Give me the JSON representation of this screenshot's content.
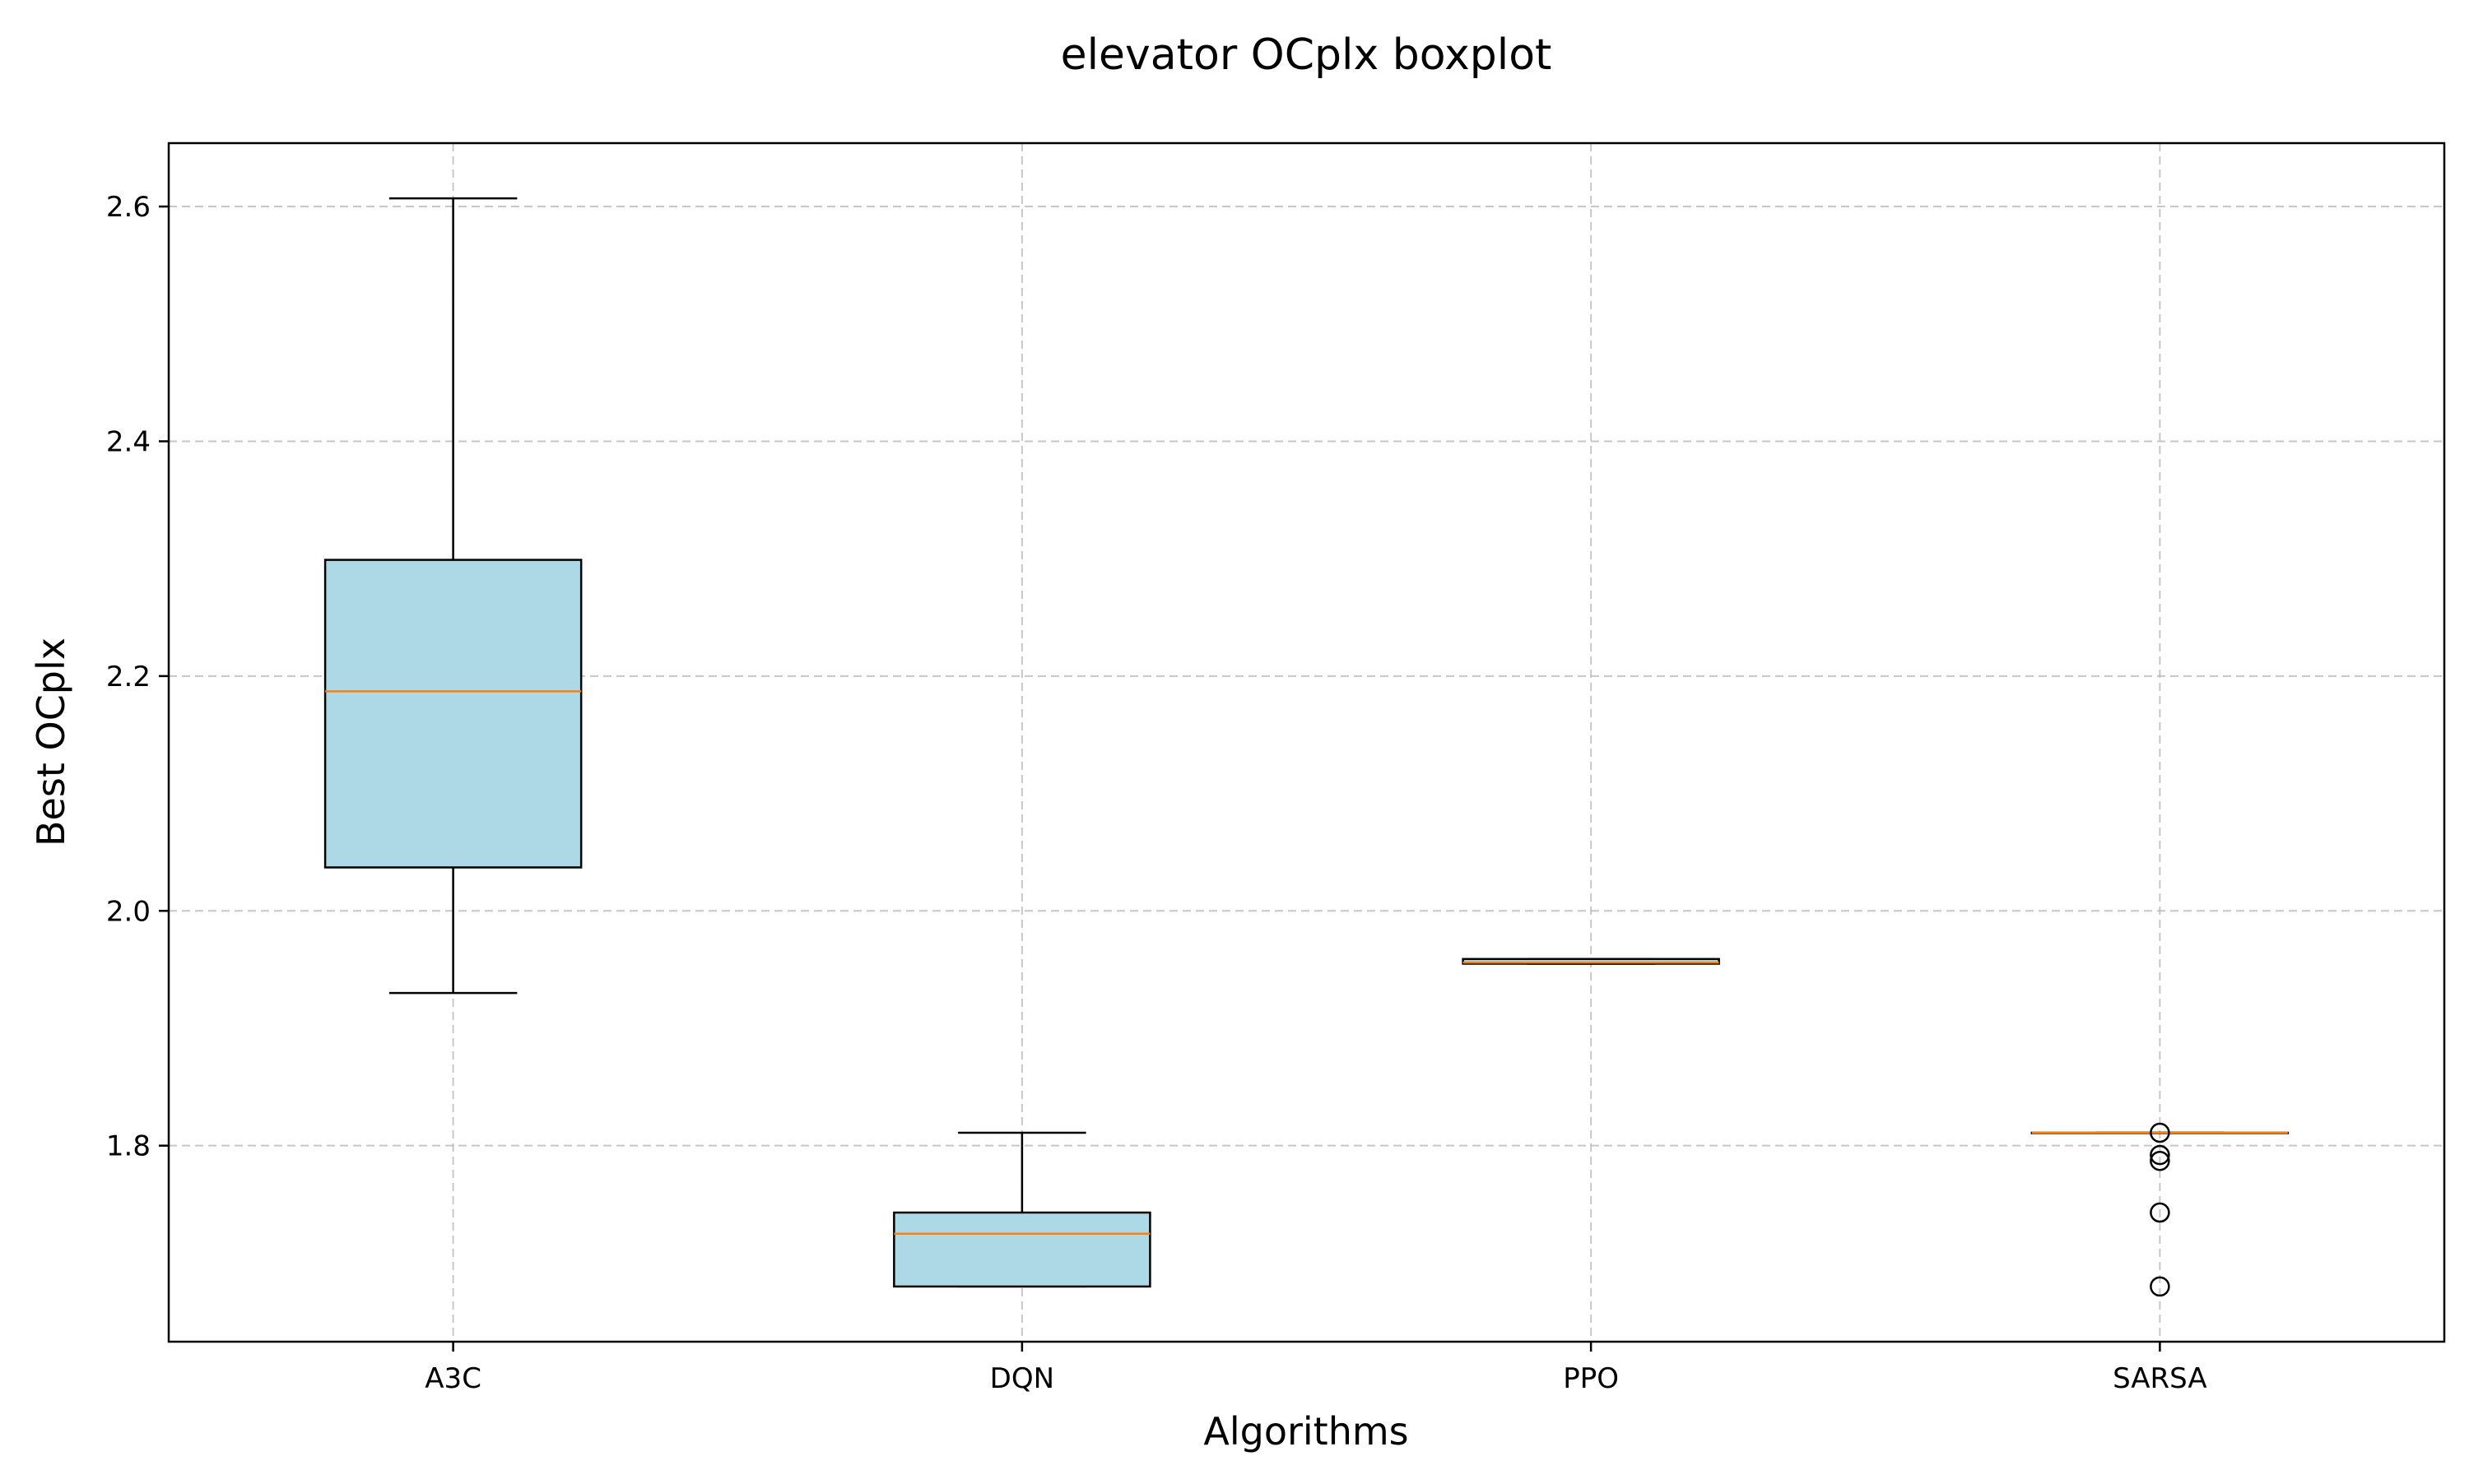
{
  "chart_data": {
    "type": "boxplot",
    "title": "elevator OCplx boxplot",
    "xlabel": "Algorithms",
    "ylabel": "Best OCplx",
    "categories": [
      "A3C",
      "DQN",
      "PPO",
      "SARSA"
    ],
    "ylim": [
      1.633,
      2.654
    ],
    "yticks": [
      1.8,
      2.0,
      2.2,
      2.4,
      2.6
    ],
    "ytick_labels": [
      "1.8",
      "2.0",
      "2.2",
      "2.4",
      "2.6"
    ],
    "grid": true,
    "box_fill": "#add8e6",
    "median_color": "#ff7f0e",
    "boxes": [
      {
        "name": "A3C",
        "whisker_low": 1.93,
        "q1": 2.037,
        "median": 2.187,
        "q3": 2.299,
        "whisker_high": 2.607,
        "fliers": []
      },
      {
        "name": "DQN",
        "whisker_low": 1.68,
        "q1": 1.68,
        "median": 1.725,
        "q3": 1.743,
        "whisker_high": 1.811,
        "fliers": []
      },
      {
        "name": "PPO",
        "whisker_low": 1.955,
        "q1": 1.955,
        "median": 1.956,
        "q3": 1.959,
        "whisker_high": 1.959,
        "fliers": []
      },
      {
        "name": "SARSA",
        "whisker_low": 1.811,
        "q1": 1.811,
        "median": 1.811,
        "q3": 1.811,
        "whisker_high": 1.811,
        "fliers": [
          1.811,
          1.792,
          1.787,
          1.743,
          1.68
        ]
      }
    ]
  }
}
